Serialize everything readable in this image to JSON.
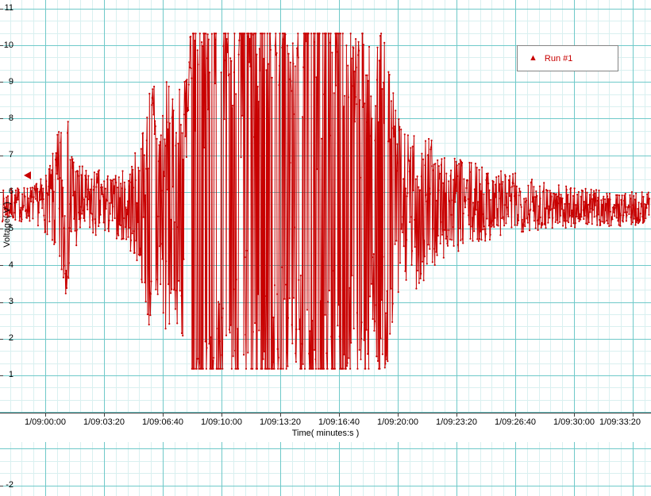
{
  "chart_data": {
    "type": "line",
    "title": "",
    "series_name": "Run #1",
    "color": "#c80000",
    "grid_major_color": "#6fc9c9",
    "grid_minor_color": "#d9f0f0",
    "axis_color": "#404040",
    "xlabel": "Time( minutes:s )",
    "ylabel": "Voltage( V )",
    "x_ticks": [
      "1/09:00:00",
      "1/09:03:20",
      "1/09:06:40",
      "1/09:10:00",
      "1/09:13:20",
      "1/09:16:40",
      "1/09:20:00",
      "1/09:23:20",
      "1/09:26:40",
      "1/09:30:00",
      "1/09:33:20"
    ],
    "x_tick_interval_s": 200,
    "y_ticks_upper": [
      11,
      10,
      9,
      8,
      7,
      6,
      5,
      4,
      3,
      2,
      1
    ],
    "y_ticks_lower": [
      -2
    ],
    "y_visible_range": [
      -2,
      11.2
    ],
    "baseline": 5.62,
    "clip": [
      1.18,
      10.32
    ],
    "indicator_value": 6.45,
    "seed": 7,
    "samples": 1400,
    "envelope": [
      [
        0.0,
        0.38
      ],
      [
        0.05,
        0.45
      ],
      [
        0.072,
        0.8
      ],
      [
        0.086,
        1.7
      ],
      [
        0.094,
        2.35
      ],
      [
        0.103,
        1.9
      ],
      [
        0.115,
        1.1
      ],
      [
        0.132,
        0.75
      ],
      [
        0.15,
        0.85
      ],
      [
        0.17,
        0.7
      ],
      [
        0.193,
        0.95
      ],
      [
        0.213,
        1.55
      ],
      [
        0.226,
        2.9
      ],
      [
        0.234,
        3.4
      ],
      [
        0.244,
        2.6
      ],
      [
        0.254,
        3.2
      ],
      [
        0.266,
        2.4
      ],
      [
        0.281,
        3.6
      ],
      [
        0.295,
        4.9
      ],
      [
        0.33,
        5.0
      ],
      [
        0.352,
        4.2
      ],
      [
        0.368,
        5.0
      ],
      [
        0.428,
        5.0
      ],
      [
        0.452,
        3.8
      ],
      [
        0.468,
        5.0
      ],
      [
        0.528,
        5.0
      ],
      [
        0.546,
        4.0
      ],
      [
        0.558,
        4.8
      ],
      [
        0.574,
        3.2
      ],
      [
        0.586,
        4.9
      ],
      [
        0.6,
        3.0
      ],
      [
        0.614,
        2.2
      ],
      [
        0.63,
        1.7
      ],
      [
        0.648,
        2.1
      ],
      [
        0.666,
        1.5
      ],
      [
        0.69,
        1.25
      ],
      [
        0.714,
        1.05
      ],
      [
        0.74,
        0.95
      ],
      [
        0.77,
        0.8
      ],
      [
        0.8,
        0.7
      ],
      [
        0.84,
        0.6
      ],
      [
        0.88,
        0.5
      ],
      [
        0.93,
        0.42
      ],
      [
        1.0,
        0.38
      ]
    ]
  },
  "legend": {
    "label": "Run #1"
  }
}
